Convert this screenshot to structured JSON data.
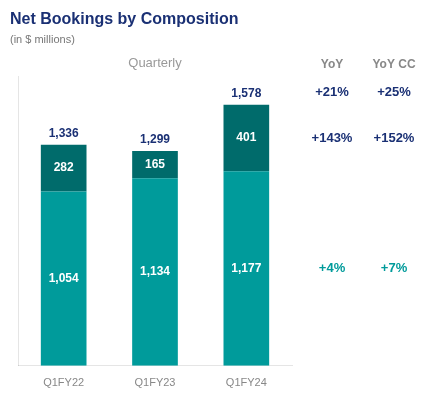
{
  "chart_data": {
    "type": "bar",
    "title": "Net Bookings by Composition",
    "title_color": "#1a3074",
    "subtitle": "(in $ millions)",
    "subtitle_color": "#777777",
    "annotations": [
      {
        "text": "Quarterly",
        "color": "#999999"
      }
    ],
    "categories": [
      "Q1FY22",
      "Q1FY23",
      "Q1FY24"
    ],
    "tick_label_color": "#888888",
    "series": [
      {
        "color": "#009b9b",
        "values": [
          1054,
          1134,
          1177
        ],
        "value_labels": [
          "1,054",
          "1,134",
          "1,177"
        ],
        "change": [
          "+4%",
          "+7%"
        ],
        "change_color": "#009b9b"
      },
      {
        "color": "#006b6b",
        "values": [
          282,
          165,
          401
        ],
        "value_labels": [
          "282",
          "165",
          "401"
        ],
        "change": [
          "+143%",
          "+152%"
        ],
        "change_color": "#1a3074"
      }
    ],
    "data_label_color": "#ffffff",
    "totals": {
      "values": [
        1336,
        1299,
        1578
      ],
      "value_labels": [
        "1,336",
        "1,299",
        "1,578"
      ],
      "color": "#1a3074",
      "change": [
        "+21%",
        "+25%"
      ],
      "change_color": "#1a3074"
    },
    "change_headers": [
      "YoY",
      "YoY CC"
    ],
    "change_header_color": "#888888",
    "stacked": true,
    "data_labels": true,
    "ylim": [
      0,
      1750
    ],
    "grid": false,
    "tick_labels": "x"
  }
}
